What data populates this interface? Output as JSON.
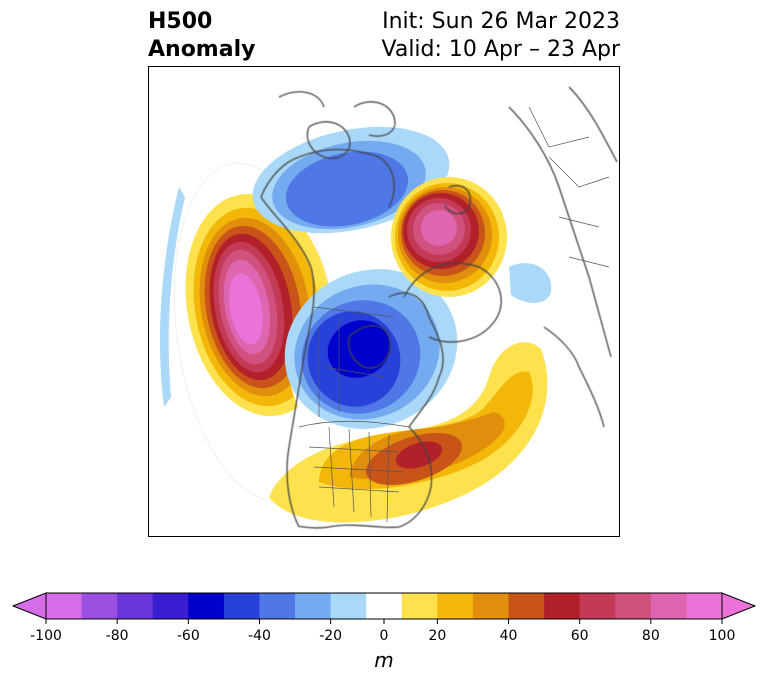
{
  "title": {
    "left_line1": "H500",
    "left_line2": "Anomaly",
    "right_line1": "Init: Sun 26 Mar 2023",
    "right_line2": "Valid: 10 Apr – 23 Apr"
  },
  "colorbar": {
    "unit": "m",
    "ticks": [
      "-100",
      "-80",
      "-60",
      "-40",
      "-20",
      "0",
      "20",
      "40",
      "60",
      "80",
      "100"
    ],
    "levels": [
      -100,
      -90,
      -80,
      -70,
      -60,
      -50,
      -40,
      -30,
      -20,
      -10,
      10,
      20,
      30,
      40,
      50,
      60,
      70,
      80,
      90,
      100
    ],
    "colors": [
      "#d66de8",
      "#9b4fe0",
      "#6a35d9",
      "#3a1ed2",
      "#0000cc",
      "#2741d9",
      "#4f77e6",
      "#74aaf0",
      "#aad8f8",
      "#ffffff",
      "#fde24d",
      "#f2b708",
      "#e08e0b",
      "#c9541a",
      "#b2202a",
      "#c23a55",
      "#d0507e",
      "#de66b0",
      "#ea72d8"
    ],
    "extend": "both"
  },
  "map_features": {
    "projection": "north-polar stereographic",
    "anomaly_centers": [
      {
        "region": "NE Pacific / Gulf of Alaska",
        "sign": "positive",
        "peak_m": 100
      },
      {
        "region": "Central Canada / Hudson Bay",
        "sign": "negative",
        "peak_m": -60
      },
      {
        "region": "Eastern United States",
        "sign": "positive",
        "peak_m": 50
      },
      {
        "region": "Arctic / Barents Sea",
        "sign": "positive",
        "peak_m": 90
      },
      {
        "region": "Siberia",
        "sign": "negative",
        "peak_m": -40
      }
    ]
  }
}
